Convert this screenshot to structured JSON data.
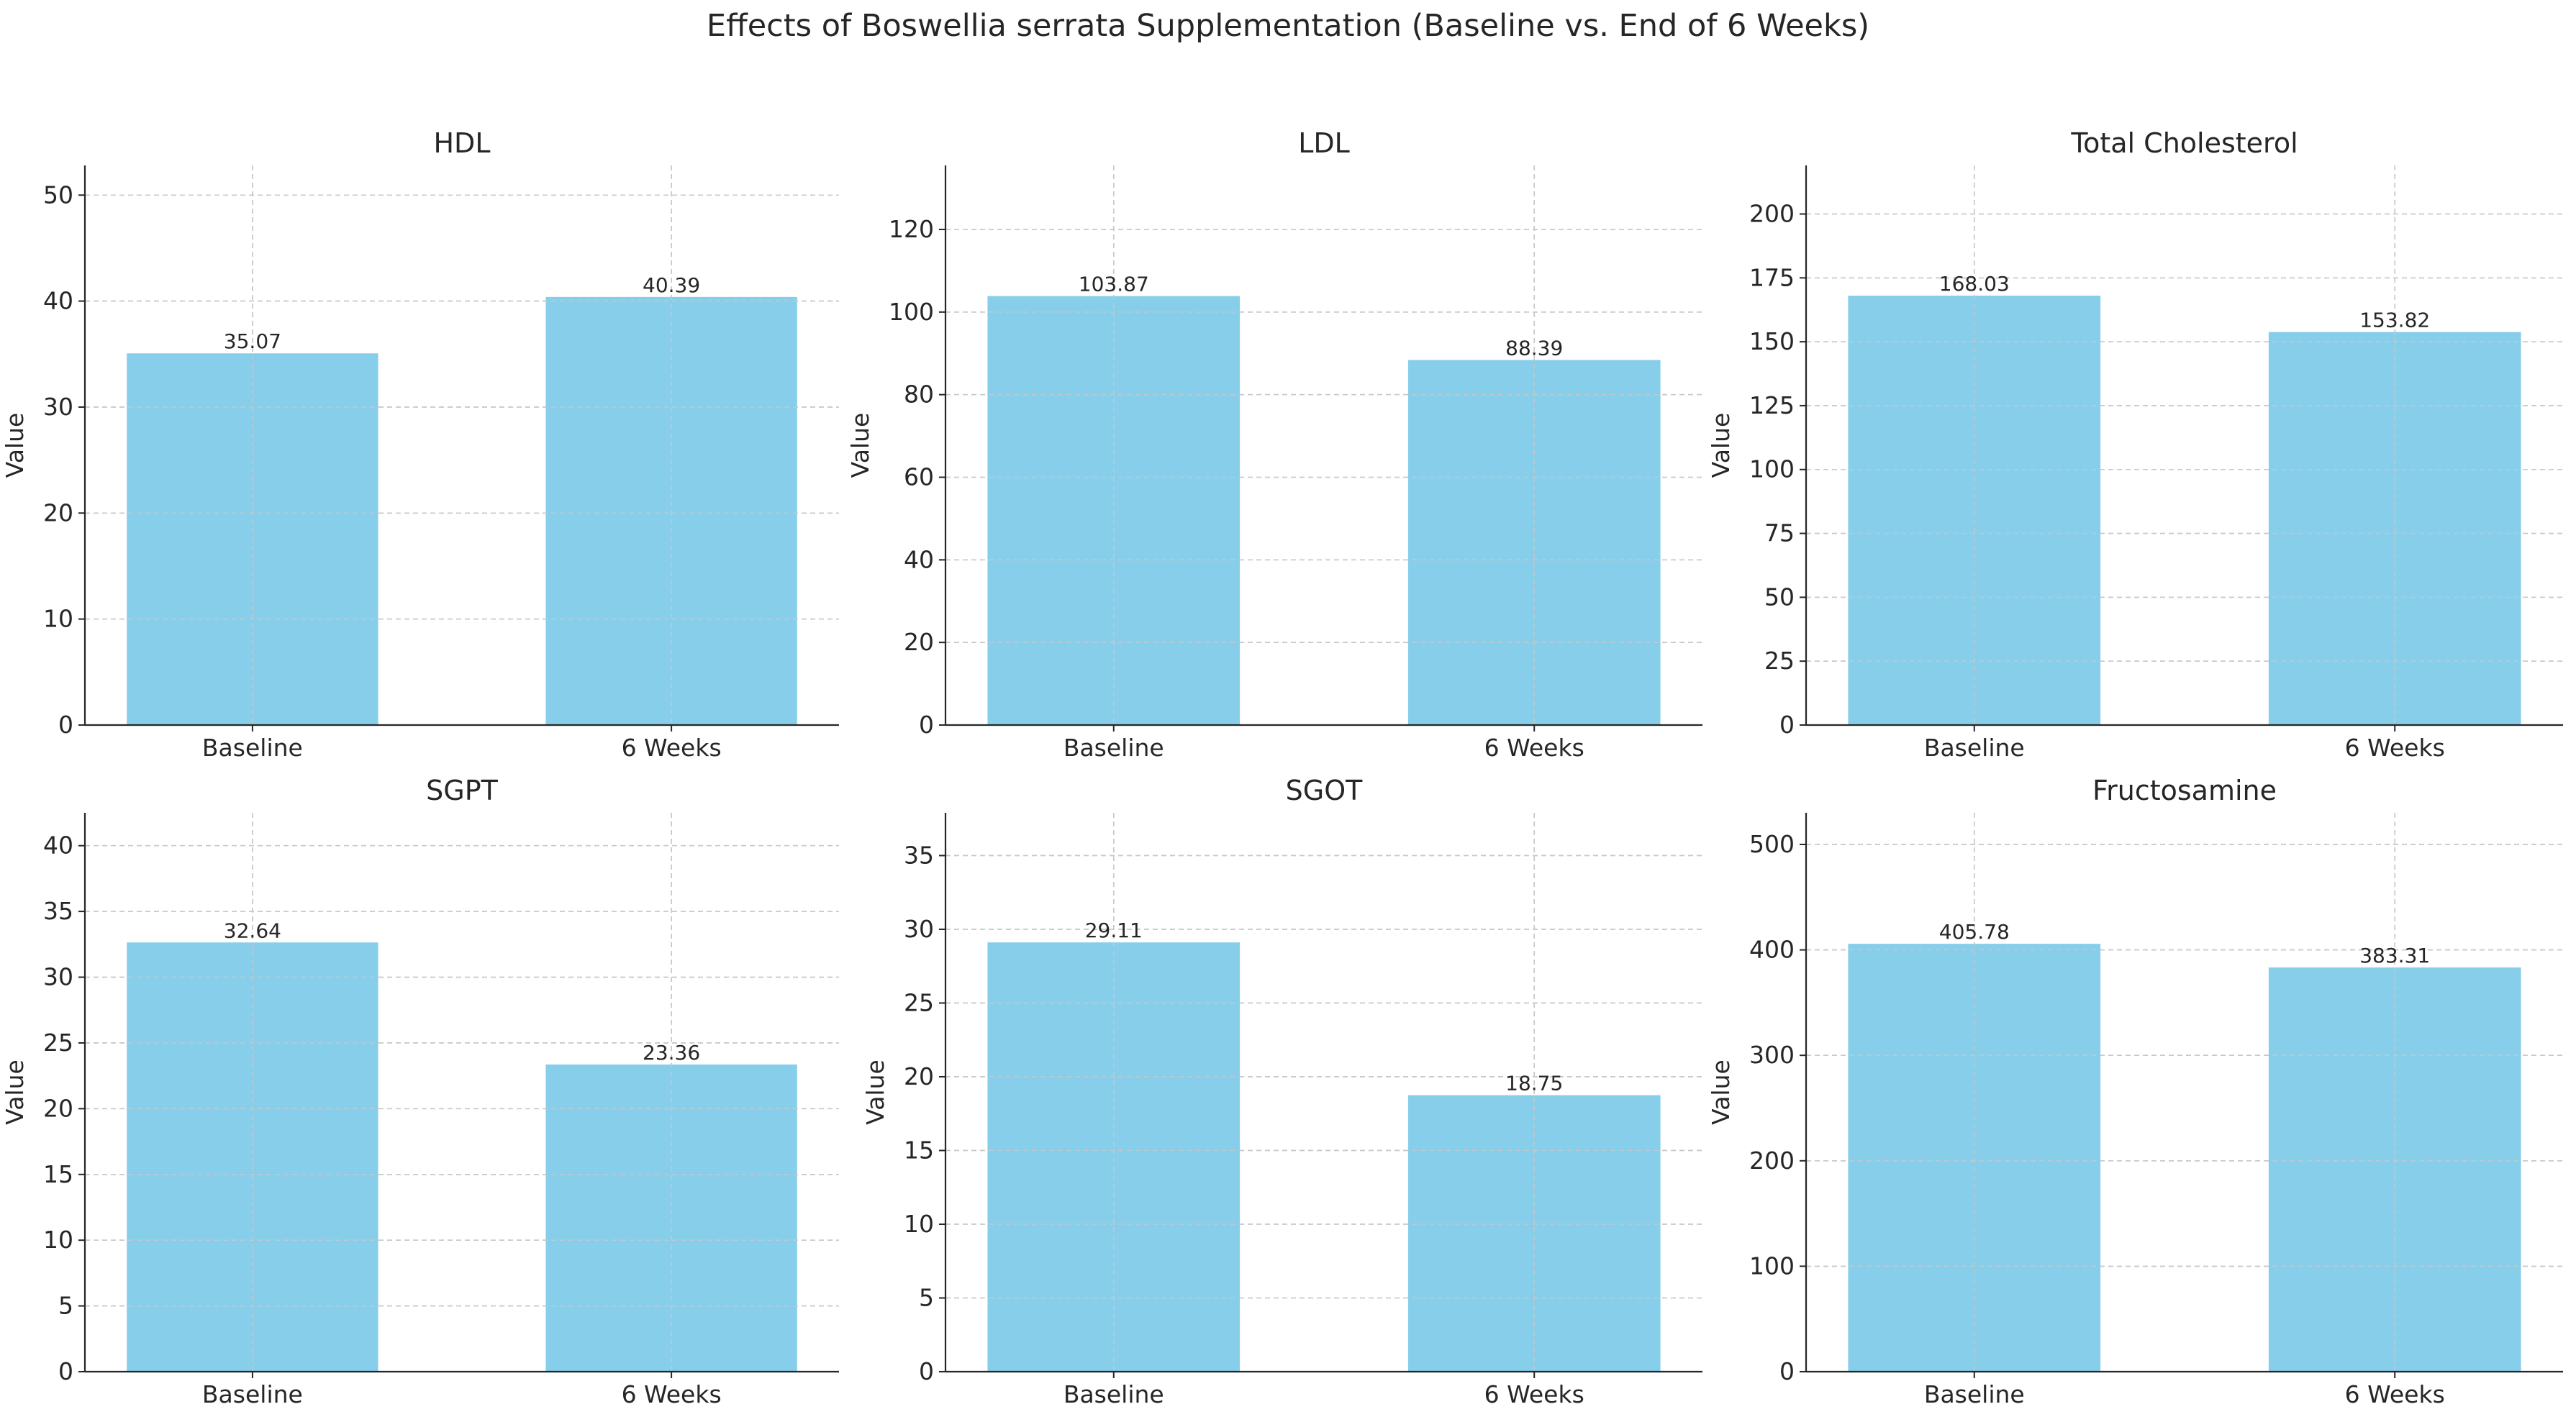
{
  "title": "Effects of Boswellia serrata Supplementation (Baseline vs. End of 6 Weeks)",
  "colors": {
    "bar": "#87CEEB",
    "grid": "#c8c8c8",
    "axis": "#262626",
    "text": "#262626"
  },
  "chart_data": [
    {
      "type": "bar",
      "title": "HDL",
      "ylabel": "Value",
      "categories": [
        "Baseline",
        "6 Weeks"
      ],
      "values": [
        35.07,
        40.39
      ],
      "data_labels": [
        "35.07",
        "40.39"
      ],
      "yticks": [
        0,
        10,
        20,
        30,
        40,
        50
      ],
      "ylim": [
        0,
        52.8
      ],
      "grid": true
    },
    {
      "type": "bar",
      "title": "LDL",
      "ylabel": "Value",
      "categories": [
        "Baseline",
        "6 Weeks"
      ],
      "values": [
        103.87,
        88.39
      ],
      "data_labels": [
        "103.87",
        "88.39"
      ],
      "yticks": [
        0,
        20,
        40,
        60,
        80,
        100,
        120
      ],
      "ylim": [
        0,
        135.5
      ],
      "grid": true
    },
    {
      "type": "bar",
      "title": "Total Cholesterol",
      "ylabel": "Value",
      "categories": [
        "Baseline",
        "6 Weeks"
      ],
      "values": [
        168.03,
        153.82
      ],
      "data_labels": [
        "168.03",
        "153.82"
      ],
      "yticks": [
        0,
        25,
        50,
        75,
        100,
        125,
        150,
        175,
        200
      ],
      "ylim": [
        0,
        219
      ],
      "grid": true
    },
    {
      "type": "bar",
      "title": "SGPT",
      "ylabel": "Value",
      "categories": [
        "Baseline",
        "6 Weeks"
      ],
      "values": [
        32.64,
        23.36
      ],
      "data_labels": [
        "32.64",
        "23.36"
      ],
      "yticks": [
        0,
        5,
        10,
        15,
        20,
        25,
        30,
        35,
        40
      ],
      "ylim": [
        0,
        42.5
      ],
      "grid": true
    },
    {
      "type": "bar",
      "title": "SGOT",
      "ylabel": "Value",
      "categories": [
        "Baseline",
        "6 Weeks"
      ],
      "values": [
        29.11,
        18.75
      ],
      "data_labels": [
        "29.11",
        "18.75"
      ],
      "yticks": [
        0,
        5,
        10,
        15,
        20,
        25,
        30,
        35
      ],
      "ylim": [
        0,
        37.9
      ],
      "grid": true
    },
    {
      "type": "bar",
      "title": "Fructosamine",
      "ylabel": "Value",
      "categories": [
        "Baseline",
        "6 Weeks"
      ],
      "values": [
        405.78,
        383.31
      ],
      "data_labels": [
        "405.78",
        "383.31"
      ],
      "yticks": [
        0,
        100,
        200,
        300,
        400,
        500
      ],
      "ylim": [
        0,
        530
      ],
      "grid": true
    }
  ]
}
